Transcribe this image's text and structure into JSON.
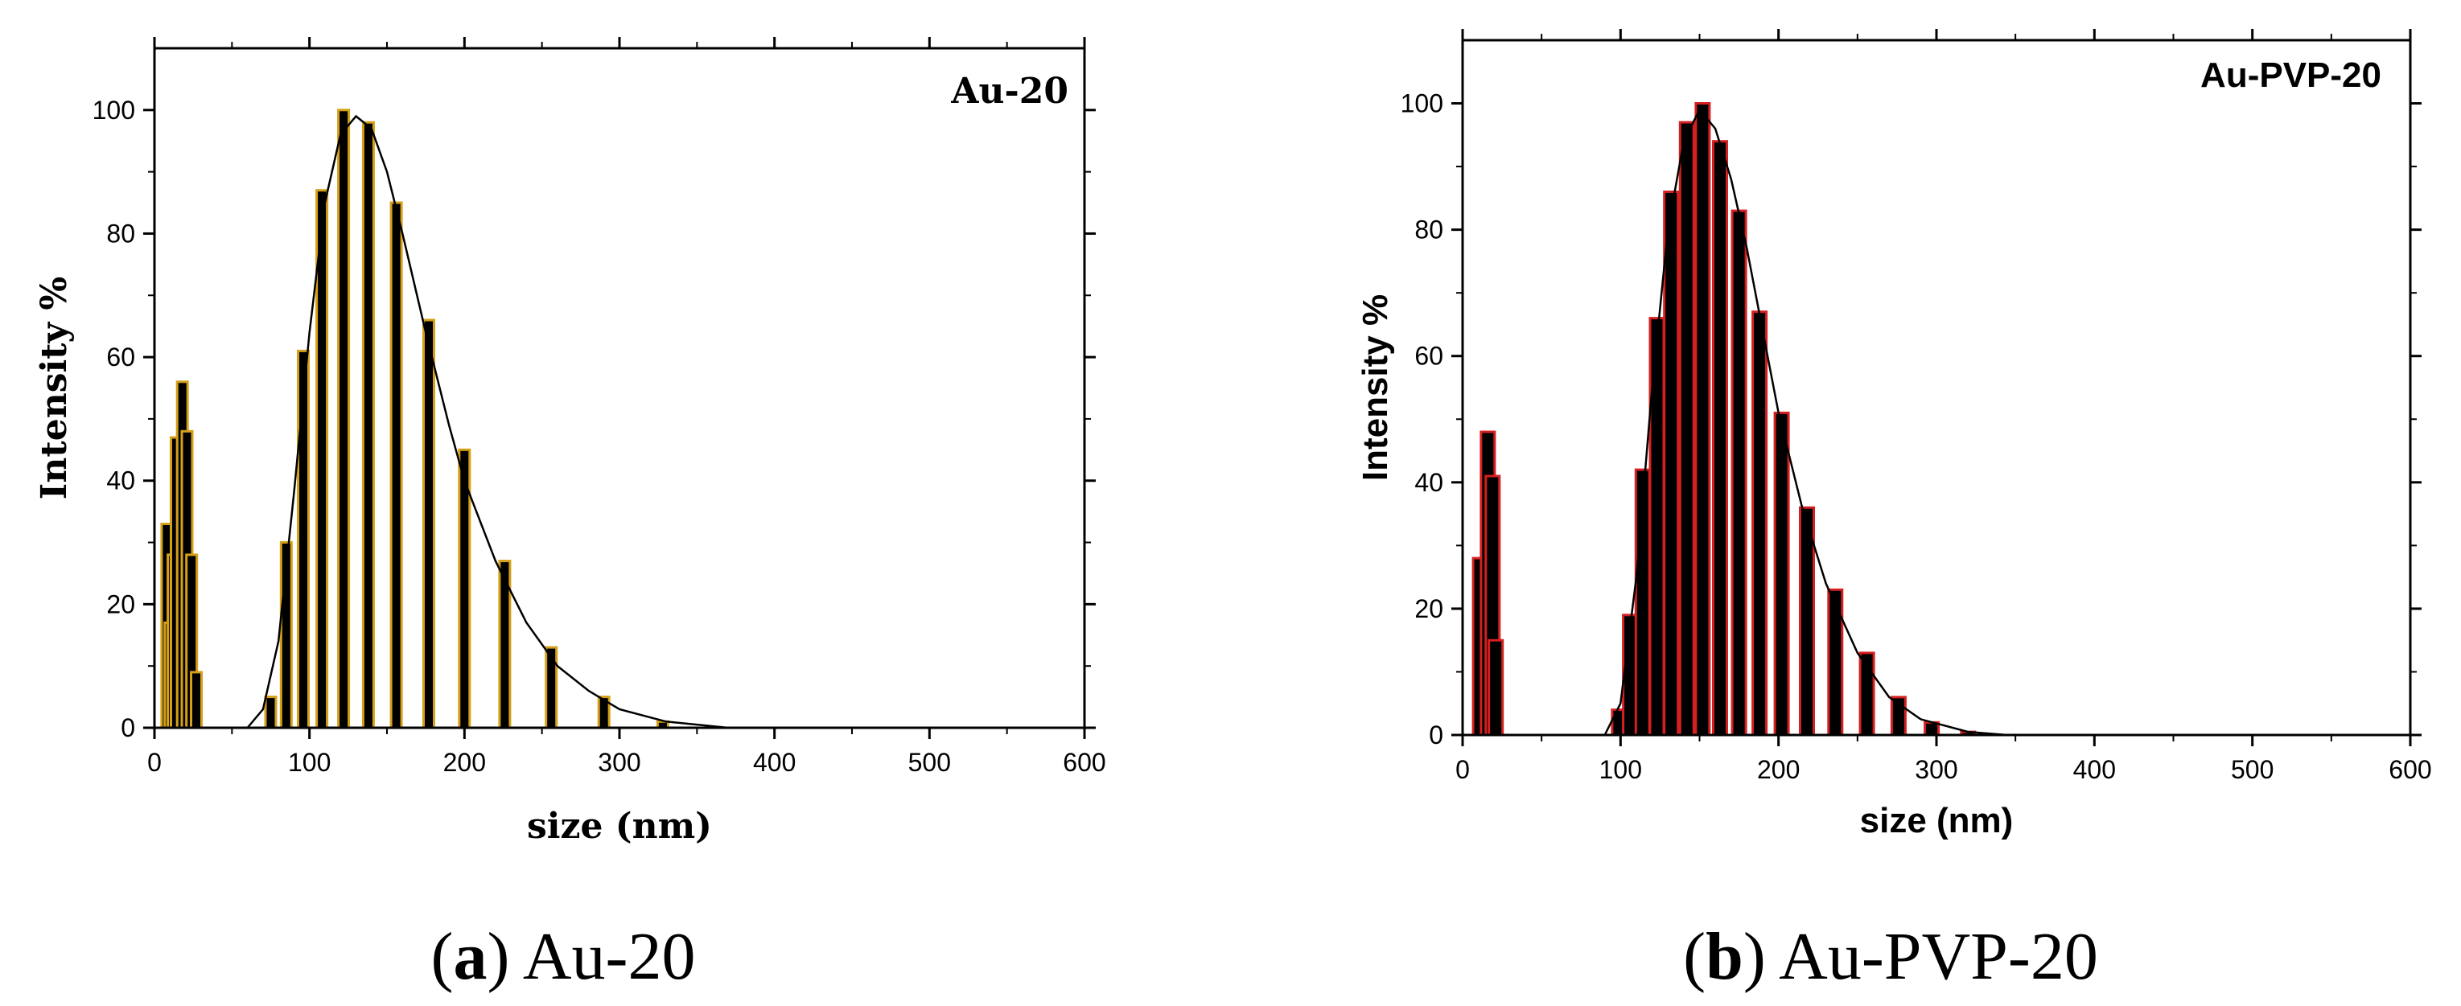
{
  "chart_data": [
    {
      "type": "bar",
      "panel": "a",
      "title": "Au-20",
      "xlabel": "size (nm)",
      "ylabel": "Intensity %",
      "xlim": [
        0,
        600
      ],
      "ylim": [
        0,
        110
      ],
      "xticks": [
        0,
        100,
        200,
        300,
        400,
        500,
        600
      ],
      "yticks": [
        0,
        20,
        40,
        60,
        80,
        100
      ],
      "bar_color": "#000000",
      "edge_color": "#d4a017",
      "legend": "none",
      "caption_label": "a",
      "caption_text": "Au-20",
      "bars": [
        {
          "x": 8,
          "y": 33
        },
        {
          "x": 10,
          "y": 17
        },
        {
          "x": 12,
          "y": 28
        },
        {
          "x": 14,
          "y": 47
        },
        {
          "x": 18,
          "y": 56
        },
        {
          "x": 21,
          "y": 48
        },
        {
          "x": 24,
          "y": 28
        },
        {
          "x": 27,
          "y": 9
        },
        {
          "x": 75,
          "y": 5
        },
        {
          "x": 85,
          "y": 30
        },
        {
          "x": 96,
          "y": 61
        },
        {
          "x": 108,
          "y": 87
        },
        {
          "x": 122,
          "y": 100
        },
        {
          "x": 138,
          "y": 98
        },
        {
          "x": 156,
          "y": 85
        },
        {
          "x": 177,
          "y": 66
        },
        {
          "x": 200,
          "y": 45
        },
        {
          "x": 226,
          "y": 27
        },
        {
          "x": 256,
          "y": 13
        },
        {
          "x": 290,
          "y": 5
        },
        {
          "x": 328,
          "y": 1
        }
      ],
      "fit": [
        {
          "x": 60,
          "y": 0
        },
        {
          "x": 70,
          "y": 3
        },
        {
          "x": 80,
          "y": 14
        },
        {
          "x": 90,
          "y": 38
        },
        {
          "x": 100,
          "y": 64
        },
        {
          "x": 110,
          "y": 85
        },
        {
          "x": 120,
          "y": 96
        },
        {
          "x": 130,
          "y": 99
        },
        {
          "x": 140,
          "y": 97
        },
        {
          "x": 150,
          "y": 90
        },
        {
          "x": 160,
          "y": 80
        },
        {
          "x": 175,
          "y": 64
        },
        {
          "x": 190,
          "y": 49
        },
        {
          "x": 200,
          "y": 40
        },
        {
          "x": 220,
          "y": 27
        },
        {
          "x": 240,
          "y": 17
        },
        {
          "x": 260,
          "y": 10
        },
        {
          "x": 280,
          "y": 6
        },
        {
          "x": 300,
          "y": 3
        },
        {
          "x": 330,
          "y": 1
        },
        {
          "x": 370,
          "y": 0
        }
      ]
    },
    {
      "type": "bar",
      "panel": "b",
      "title": "Au-PVP-20",
      "xlabel": "size (nm)",
      "ylabel": "Intensity %",
      "xlim": [
        0,
        600
      ],
      "ylim": [
        0,
        110
      ],
      "xticks": [
        0,
        100,
        200,
        300,
        400,
        500,
        600
      ],
      "yticks": [
        0,
        20,
        40,
        60,
        80,
        100
      ],
      "bar_color": "#000000",
      "edge_color": "#d42020",
      "legend": "none",
      "caption_label": "b",
      "caption_text": "Au-PVP-20",
      "bars": [
        {
          "x": 11,
          "y": 28
        },
        {
          "x": 16,
          "y": 48
        },
        {
          "x": 19,
          "y": 41
        },
        {
          "x": 21,
          "y": 15
        },
        {
          "x": 99,
          "y": 4
        },
        {
          "x": 106,
          "y": 19
        },
        {
          "x": 114,
          "y": 42
        },
        {
          "x": 123,
          "y": 66
        },
        {
          "x": 132,
          "y": 86
        },
        {
          "x": 142,
          "y": 97
        },
        {
          "x": 152,
          "y": 100
        },
        {
          "x": 163,
          "y": 94
        },
        {
          "x": 175,
          "y": 83
        },
        {
          "x": 188,
          "y": 67
        },
        {
          "x": 202,
          "y": 51
        },
        {
          "x": 218,
          "y": 36
        },
        {
          "x": 236,
          "y": 23
        },
        {
          "x": 256,
          "y": 13
        },
        {
          "x": 276,
          "y": 6
        },
        {
          "x": 297,
          "y": 2
        },
        {
          "x": 320,
          "y": 0.5
        }
      ],
      "fit": [
        {
          "x": 90,
          "y": 0
        },
        {
          "x": 100,
          "y": 5
        },
        {
          "x": 110,
          "y": 25
        },
        {
          "x": 120,
          "y": 55
        },
        {
          "x": 130,
          "y": 80
        },
        {
          "x": 140,
          "y": 94
        },
        {
          "x": 150,
          "y": 99
        },
        {
          "x": 160,
          "y": 96
        },
        {
          "x": 170,
          "y": 88
        },
        {
          "x": 180,
          "y": 77
        },
        {
          "x": 190,
          "y": 64
        },
        {
          "x": 200,
          "y": 51
        },
        {
          "x": 215,
          "y": 36
        },
        {
          "x": 230,
          "y": 24
        },
        {
          "x": 250,
          "y": 13
        },
        {
          "x": 270,
          "y": 6
        },
        {
          "x": 290,
          "y": 2.5
        },
        {
          "x": 320,
          "y": 0.5
        },
        {
          "x": 345,
          "y": 0
        }
      ]
    }
  ]
}
